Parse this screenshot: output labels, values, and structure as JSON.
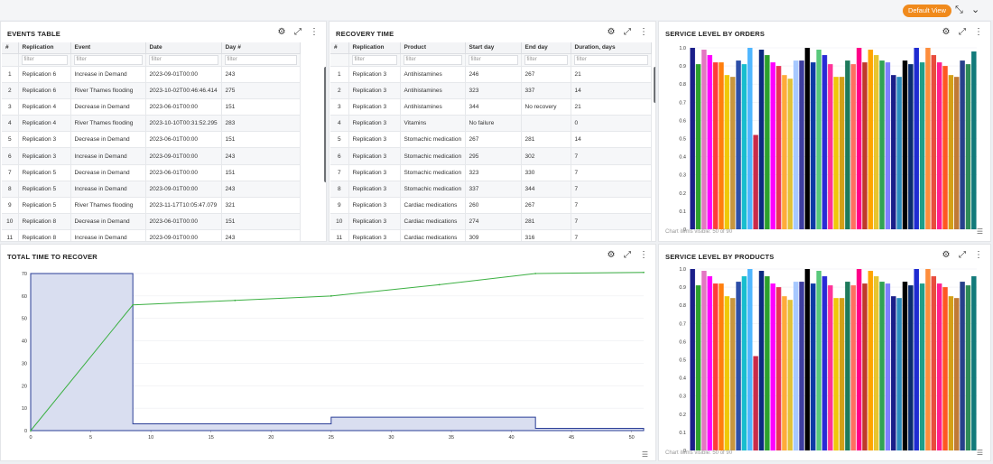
{
  "header": {
    "default_view_label": "Default View"
  },
  "events_table": {
    "title": "EVENTS TABLE",
    "columns": [
      "#",
      "Replication",
      "Event",
      "Date",
      "Day #"
    ],
    "filter_placeholder": "filter",
    "rows": [
      [
        "1",
        "Replication 6",
        "Increase in Demand",
        "2023-09-01T00:00",
        "243"
      ],
      [
        "2",
        "Replication 6",
        "River Thames flooding",
        "2023-10-02T00:46:46.414",
        "275"
      ],
      [
        "3",
        "Replication 4",
        "Decrease in Demand",
        "2023-06-01T00:00",
        "151"
      ],
      [
        "4",
        "Replication 4",
        "River Thames flooding",
        "2023-10-10T00:31:52.295",
        "283"
      ],
      [
        "5",
        "Replication 3",
        "Decrease in Demand",
        "2023-06-01T00:00",
        "151"
      ],
      [
        "6",
        "Replication 3",
        "Increase in Demand",
        "2023-09-01T00:00",
        "243"
      ],
      [
        "7",
        "Replication 5",
        "Decrease in Demand",
        "2023-06-01T00:00",
        "151"
      ],
      [
        "8",
        "Replication 5",
        "Increase in Demand",
        "2023-09-01T00:00",
        "243"
      ],
      [
        "9",
        "Replication 5",
        "River Thames flooding",
        "2023-11-17T10:05:47.079",
        "321"
      ],
      [
        "10",
        "Replication 8",
        "Decrease in Demand",
        "2023-06-01T00:00",
        "151"
      ],
      [
        "11",
        "Replication 8",
        "Increase in Demand",
        "2023-09-01T00:00",
        "243"
      ]
    ]
  },
  "recovery_time": {
    "title": "RECOVERY TIME",
    "columns": [
      "#",
      "Replication",
      "Product",
      "Start day",
      "End day",
      "Duration, days"
    ],
    "filter_placeholder": "filter",
    "rows": [
      [
        "1",
        "Replication 3",
        "Antihistamines",
        "246",
        "267",
        "21"
      ],
      [
        "2",
        "Replication 3",
        "Antihistamines",
        "323",
        "337",
        "14"
      ],
      [
        "3",
        "Replication 3",
        "Antihistamines",
        "344",
        "No recovery",
        "21"
      ],
      [
        "4",
        "Replication 3",
        "Vitamins",
        "No failure",
        "",
        "0"
      ],
      [
        "5",
        "Replication 3",
        "Stomachic medication",
        "267",
        "281",
        "14"
      ],
      [
        "6",
        "Replication 3",
        "Stomachic medication",
        "295",
        "302",
        "7"
      ],
      [
        "7",
        "Replication 3",
        "Stomachic medication",
        "323",
        "330",
        "7"
      ],
      [
        "8",
        "Replication 3",
        "Stomachic medication",
        "337",
        "344",
        "7"
      ],
      [
        "9",
        "Replication 3",
        "Cardiac medications",
        "260",
        "267",
        "7"
      ],
      [
        "10",
        "Replication 3",
        "Cardiac medications",
        "274",
        "281",
        "7"
      ],
      [
        "11",
        "Replication 3",
        "Cardiac medications",
        "309",
        "316",
        "7"
      ]
    ]
  },
  "service_orders": {
    "title": "SERVICE LEVEL BY ORDERS",
    "footer": "Chart items visible: 50 of 90"
  },
  "service_products": {
    "title": "SERVICE LEVEL BY PRODUCTS",
    "footer": "Chart items visible: 50 of 90"
  },
  "total_time": {
    "title": "TOTAL TIME TO RECOVER"
  },
  "icons": [
    "gear-icon",
    "expand-icon",
    "more-icon",
    "collapse-icon",
    "double-chevron-down-icon",
    "legend-list-icon"
  ],
  "chart_data": [
    {
      "type": "bar",
      "title": "SERVICE LEVEL BY ORDERS",
      "ylim": [
        0,
        1.0
      ],
      "yticks": [
        "0",
        "0.1",
        "0.2",
        "0.3",
        "0.4",
        "0.5",
        "0.6",
        "0.7",
        "0.8",
        "0.9",
        "1.0"
      ],
      "values": [
        1.0,
        0.91,
        0.99,
        0.96,
        0.92,
        0.92,
        0.85,
        0.84,
        0.93,
        0.91,
        1.0,
        0.52,
        0.99,
        0.96,
        0.92,
        0.9,
        0.85,
        0.83,
        0.93,
        0.93,
        1.0,
        0.92,
        0.99,
        0.96,
        0.91,
        0.84,
        0.84,
        0.93,
        0.91,
        1.0,
        0.92,
        0.99,
        0.96,
        0.93,
        0.92,
        0.85,
        0.84,
        0.93,
        0.91,
        1.0,
        0.92,
        1.0,
        0.96,
        0.92,
        0.9,
        0.85,
        0.84,
        0.93,
        0.91,
        0.98
      ],
      "colors": [
        "#1b1f8a",
        "#2ca02c",
        "#e377c2",
        "#ff00ff",
        "#ff3b3b",
        "#ff7f0e",
        "#f0c808",
        "#c8963e",
        "#2d4fa8",
        "#17becf",
        "#4fb6ff",
        "#c92a4a",
        "#0b2a80",
        "#2ca02c",
        "#ff00ff",
        "#e8325a",
        "#ffab3b",
        "#e0c33a",
        "#a6c8ff",
        "#3e3ea0",
        "#000000",
        "#0d3aa6",
        "#59c97c",
        "#2a2ad6",
        "#ff3399",
        "#f0c808",
        "#d4a017",
        "#1f7a5c",
        "#ff6f61",
        "#ff0088",
        "#c0392b",
        "#ffa500",
        "#e8c530",
        "#31a354",
        "#7f7fff",
        "#1b1f8a",
        "#2b8cbe",
        "#000000",
        "#0a2c6e",
        "#1f2bd1",
        "#1f9e89",
        "#fd8d3c",
        "#e84c3d",
        "#ff1f8e",
        "#ff5722",
        "#d4a017",
        "#c07a35",
        "#27408b",
        "#2e8b57",
        "#127a7a"
      ]
    },
    {
      "type": "bar",
      "title": "SERVICE LEVEL BY PRODUCTS",
      "ylim": [
        0,
        1.0
      ],
      "yticks": [
        "0",
        "0.1",
        "0.2",
        "0.3",
        "0.4",
        "0.5",
        "0.6",
        "0.7",
        "0.8",
        "0.9",
        "1.0"
      ],
      "values": [
        1.0,
        0.91,
        0.99,
        0.96,
        0.92,
        0.92,
        0.85,
        0.84,
        0.93,
        0.96,
        1.0,
        0.52,
        0.99,
        0.96,
        0.92,
        0.9,
        0.85,
        0.83,
        0.93,
        0.93,
        1.0,
        0.92,
        0.99,
        0.96,
        0.91,
        0.84,
        0.84,
        0.93,
        0.91,
        1.0,
        0.92,
        0.99,
        0.96,
        0.93,
        0.92,
        0.85,
        0.84,
        0.93,
        0.91,
        1.0,
        0.92,
        1.0,
        0.96,
        0.92,
        0.9,
        0.85,
        0.84,
        0.93,
        0.91,
        0.96
      ],
      "colors": [
        "#1b1f8a",
        "#2ca02c",
        "#e377c2",
        "#ff00ff",
        "#ff3b3b",
        "#ff7f0e",
        "#f0c808",
        "#c8963e",
        "#2d4fa8",
        "#17becf",
        "#4fb6ff",
        "#c92a4a",
        "#0b2a80",
        "#2ca02c",
        "#ff00ff",
        "#e8325a",
        "#ffab3b",
        "#e0c33a",
        "#a6c8ff",
        "#3e3ea0",
        "#000000",
        "#0d3aa6",
        "#59c97c",
        "#2a2ad6",
        "#ff3399",
        "#f0c808",
        "#d4a017",
        "#1f7a5c",
        "#ff6f61",
        "#ff0088",
        "#c0392b",
        "#ffa500",
        "#e8c530",
        "#31a354",
        "#7f7fff",
        "#1b1f8a",
        "#2b8cbe",
        "#000000",
        "#0a2c6e",
        "#1f2bd1",
        "#1f9e89",
        "#fd8d3c",
        "#e84c3d",
        "#ff1f8e",
        "#ff5722",
        "#d4a017",
        "#c07a35",
        "#27408b",
        "#2e8b57",
        "#127a7a"
      ]
    },
    {
      "type": "area",
      "title": "TOTAL TIME TO RECOVER",
      "xlim": [
        0,
        51
      ],
      "ylim": [
        0,
        72
      ],
      "xticks": [
        "0",
        "5",
        "10",
        "15",
        "20",
        "25",
        "30",
        "35",
        "40",
        "45",
        "50"
      ],
      "yticks": [
        "0",
        "10",
        "20",
        "30",
        "40",
        "50",
        "60",
        "70"
      ],
      "area_steps": [
        [
          0,
          70
        ],
        [
          8.5,
          70
        ],
        [
          8.5,
          3
        ],
        [
          25,
          3
        ],
        [
          25,
          6
        ],
        [
          42,
          6
        ],
        [
          42,
          1
        ],
        [
          51,
          1
        ]
      ],
      "line_points": [
        [
          0,
          0
        ],
        [
          8.5,
          56
        ],
        [
          17,
          58
        ],
        [
          25,
          60
        ],
        [
          34,
          65
        ],
        [
          42,
          70
        ],
        [
          51,
          70.5
        ]
      ]
    }
  ]
}
